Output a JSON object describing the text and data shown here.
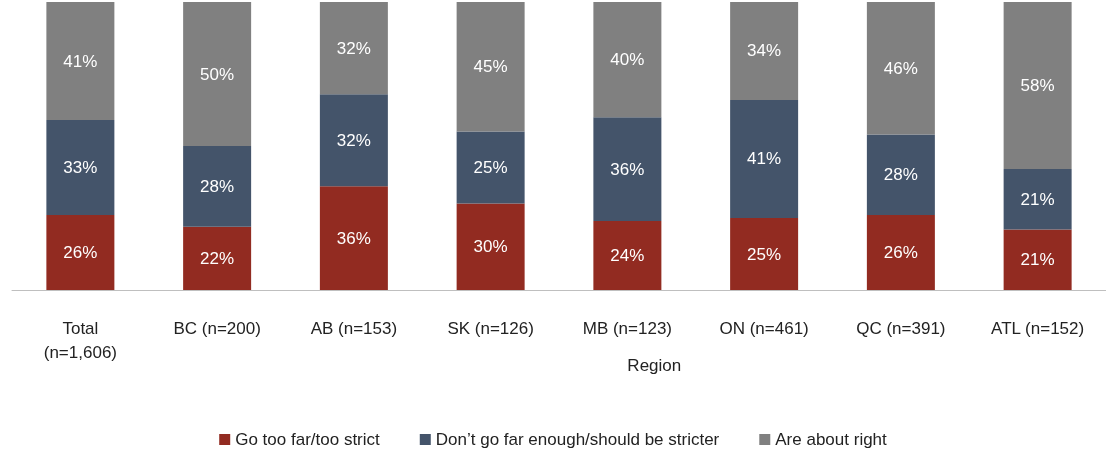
{
  "chart_data": {
    "type": "bar",
    "stacked": true,
    "categories": [
      "Total\n(n=1,606)",
      "BC (n=200)",
      "AB (n=153)",
      "SK (n=126)",
      "MB (n=123)",
      "ON (n=461)",
      "QC (n=391)",
      "ATL (n=152)"
    ],
    "series": [
      {
        "name": "Go too far/too strict",
        "color": "#922b21",
        "values": [
          26,
          22,
          36,
          30,
          24,
          25,
          26,
          21
        ],
        "value_labels": [
          "26%",
          "22%",
          "36%",
          "30%",
          "24%",
          "25%",
          "26%",
          "21%"
        ]
      },
      {
        "name": "Don’t go far enough/should be stricter",
        "color": "#44546a",
        "values": [
          33,
          28,
          32,
          25,
          36,
          41,
          28,
          21
        ],
        "value_labels": [
          "33%",
          "28%",
          "32%",
          "25%",
          "36%",
          "41%",
          "28%",
          "21%"
        ]
      },
      {
        "name": "Are about right",
        "color": "#808080",
        "values": [
          41,
          50,
          32,
          45,
          40,
          34,
          46,
          58
        ],
        "value_labels": [
          "41%",
          "50%",
          "32%",
          "45%",
          "40%",
          "34%",
          "46%",
          "58%"
        ]
      }
    ],
    "annotations": [
      "Region"
    ],
    "legend": "bottom"
  }
}
